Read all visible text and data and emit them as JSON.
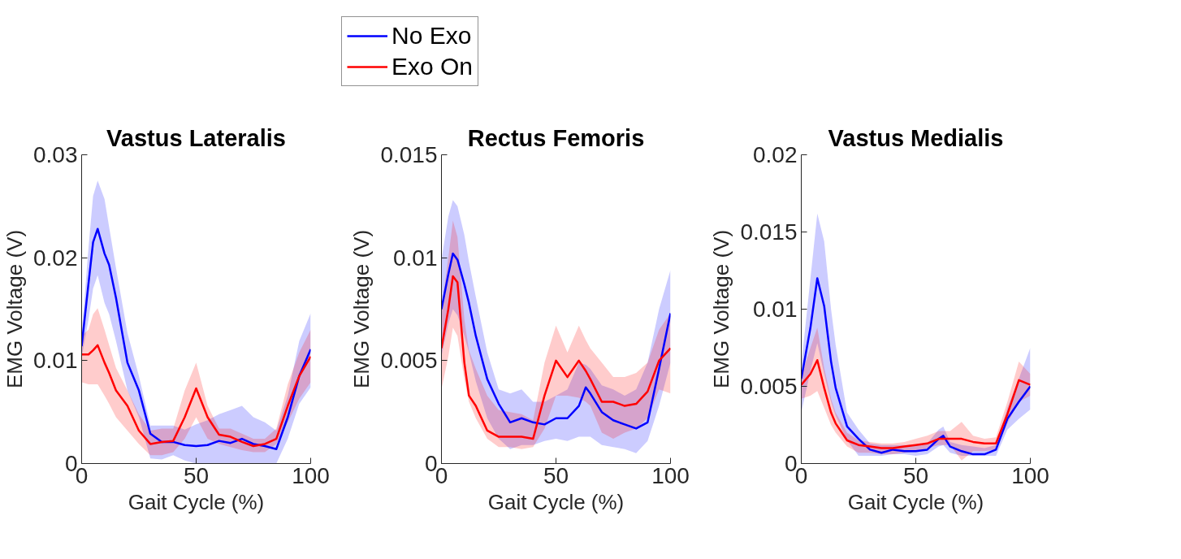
{
  "chart_data": [
    {
      "type": "line",
      "title": "Vastus Lateralis",
      "xlabel": "Gait Cycle (%)",
      "ylabel": "EMG Voltage (V)",
      "legend": "top",
      "x": [
        0,
        3,
        5,
        7,
        10,
        12,
        15,
        20,
        25,
        30,
        35,
        40,
        45,
        50,
        55,
        60,
        65,
        70,
        75,
        80,
        85,
        90,
        95,
        100
      ],
      "xlim": [
        0,
        100
      ],
      "xticks": [
        0,
        50,
        100
      ],
      "ylim": [
        0,
        0.03
      ],
      "yticks": [
        0,
        0.01,
        0.02,
        0.03
      ],
      "series": [
        {
          "name": "No Exo",
          "color": "#0000ff",
          "values": [
            0.0114,
            0.0175,
            0.0215,
            0.0228,
            0.0204,
            0.0193,
            0.0161,
            0.0098,
            0.0071,
            0.0029,
            0.0021,
            0.0021,
            0.0018,
            0.0017,
            0.0018,
            0.0022,
            0.002,
            0.0024,
            0.0019,
            0.0017,
            0.0014,
            0.0045,
            0.0085,
            0.0111
          ],
          "upper": [
            0.0124,
            0.021,
            0.026,
            0.0275,
            0.0257,
            0.023,
            0.019,
            0.0127,
            0.0085,
            0.0037,
            0.0037,
            0.0037,
            0.0033,
            0.0038,
            0.0042,
            0.0048,
            0.0052,
            0.0056,
            0.0045,
            0.004,
            0.0032,
            0.0066,
            0.0119,
            0.0146
          ],
          "lower": [
            0.0103,
            0.014,
            0.017,
            0.0183,
            0.0156,
            0.0145,
            0.0119,
            0.0071,
            0.0045,
            0.0005,
            0.0004,
            0.0008,
            0.0003,
            0,
            0,
            0,
            0,
            0,
            0,
            0,
            0,
            0.0024,
            0.0058,
            0.0074
          ]
        },
        {
          "name": "Exo On",
          "color": "#ff0000",
          "values": [
            0.0106,
            0.0106,
            0.011,
            0.0115,
            0.0098,
            0.0088,
            0.0071,
            0.0056,
            0.0032,
            0.0019,
            0.0021,
            0.0022,
            0.0045,
            0.0073,
            0.0045,
            0.0028,
            0.0026,
            0.0021,
            0.0017,
            0.0019,
            0.0024,
            0.0056,
            0.0085,
            0.0104
          ],
          "upper": [
            0.0124,
            0.013,
            0.0145,
            0.0151,
            0.013,
            0.0115,
            0.0093,
            0.0071,
            0.0048,
            0.0032,
            0.0034,
            0.0034,
            0.0071,
            0.0098,
            0.0056,
            0.0034,
            0.0034,
            0.0029,
            0.0024,
            0.0024,
            0.0034,
            0.0077,
            0.0108,
            0.013
          ],
          "lower": [
            0.0079,
            0.0077,
            0.0077,
            0.0077,
            0.0066,
            0.0058,
            0.0045,
            0.0032,
            0.0019,
            0.0008,
            0.0008,
            0.0011,
            0.0024,
            0.0045,
            0.0024,
            0.0019,
            0.0016,
            0.0013,
            0.0011,
            0.0011,
            0.0019,
            0.004,
            0.0063,
            0.0079
          ]
        }
      ]
    },
    {
      "type": "line",
      "title": "Rectus Femoris",
      "xlabel": "Gait Cycle (%)",
      "ylabel": "EMG Voltage (V)",
      "x": [
        0,
        3,
        5,
        7,
        10,
        12,
        15,
        20,
        25,
        30,
        35,
        40,
        45,
        50,
        55,
        60,
        63,
        65,
        70,
        75,
        80,
        85,
        90,
        95,
        100
      ],
      "xlim": [
        0,
        100
      ],
      "xticks": [
        0,
        50,
        100
      ],
      "ylim": [
        0,
        0.015
      ],
      "yticks": [
        0,
        0.005,
        0.01,
        0.015
      ],
      "series": [
        {
          "color": "#0000ff",
          "values": [
            0.0075,
            0.0092,
            0.0102,
            0.0099,
            0.0087,
            0.0078,
            0.0062,
            0.0041,
            0.0029,
            0.002,
            0.0022,
            0.002,
            0.0019,
            0.0022,
            0.0022,
            0.0028,
            0.0037,
            0.0034,
            0.0025,
            0.0021,
            0.0019,
            0.0017,
            0.002,
            0.0046,
            0.0073
          ],
          "upper": [
            0.0099,
            0.012,
            0.0128,
            0.0125,
            0.0111,
            0.0098,
            0.0081,
            0.0054,
            0.0036,
            0.0034,
            0.0036,
            0.003,
            0.003,
            0.0033,
            0.0036,
            0.0049,
            0.0048,
            0.0046,
            0.0038,
            0.0036,
            0.0033,
            0.0036,
            0.0049,
            0.0075,
            0.0094
          ],
          "lower": [
            0.0052,
            0.0068,
            0.0075,
            0.0072,
            0.0062,
            0.0054,
            0.004,
            0.0022,
            0.0012,
            0.0007,
            0.0009,
            0.0009,
            0.0011,
            0.0012,
            0.0011,
            0.0013,
            0.0013,
            0.0013,
            0.0009,
            0.0008,
            0.0007,
            0.0005,
            0.0011,
            0.0028,
            0.0049
          ]
        },
        {
          "color": "#ff0000",
          "values": [
            0.0056,
            0.0075,
            0.0091,
            0.0088,
            0.0049,
            0.0033,
            0.0028,
            0.0016,
            0.0013,
            0.0013,
            0.0013,
            0.0012,
            0.0033,
            0.005,
            0.0042,
            0.005,
            0.0045,
            0.0041,
            0.003,
            0.003,
            0.0028,
            0.0029,
            0.0035,
            0.005,
            0.0056
          ],
          "upper": [
            0.0075,
            0.01,
            0.0118,
            0.011,
            0.007,
            0.0055,
            0.0046,
            0.0033,
            0.0026,
            0.0025,
            0.0024,
            0.0021,
            0.0049,
            0.0067,
            0.0054,
            0.0067,
            0.006,
            0.0056,
            0.0049,
            0.0042,
            0.0042,
            0.0044,
            0.0049,
            0.0065,
            0.0073
          ],
          "lower": [
            0.0036,
            0.0052,
            0.0066,
            0.0062,
            0.0041,
            0.003,
            0.0022,
            0.0012,
            0.0008,
            0.0008,
            0.0007,
            0.0008,
            0.0017,
            0.0033,
            0.0033,
            0.0032,
            0.003,
            0.0028,
            0.0015,
            0.0012,
            0.0015,
            0.0017,
            0.0022,
            0.0036,
            0.0034
          ]
        }
      ]
    },
    {
      "type": "line",
      "title": "Vastus Medialis",
      "xlabel": "Gait Cycle (%)",
      "ylabel": "EMG Voltage (V)",
      "x": [
        0,
        4,
        7,
        10,
        13,
        15,
        20,
        25,
        30,
        35,
        40,
        45,
        50,
        55,
        60,
        62,
        65,
        70,
        75,
        80,
        85,
        90,
        95,
        100
      ],
      "xlim": [
        0,
        100
      ],
      "xticks": [
        0,
        50,
        100
      ],
      "ylim": [
        0,
        0.02
      ],
      "yticks": [
        0,
        0.005,
        0.01,
        0.015,
        0.02
      ],
      "series": [
        {
          "color": "#0000ff",
          "values": [
            0.0055,
            0.0088,
            0.012,
            0.0102,
            0.0066,
            0.0049,
            0.0024,
            0.0016,
            0.0009,
            0.0007,
            0.0009,
            0.0008,
            0.0008,
            0.0009,
            0.0016,
            0.0018,
            0.0011,
            0.0008,
            0.0006,
            0.0006,
            0.0009,
            0.0029,
            0.004,
            0.005
          ],
          "upper": [
            0.0064,
            0.012,
            0.0162,
            0.0144,
            0.01,
            0.0077,
            0.0033,
            0.0022,
            0.0013,
            0.0012,
            0.0012,
            0.0012,
            0.0012,
            0.0013,
            0.0022,
            0.0024,
            0.0014,
            0.0012,
            0.0011,
            0.001,
            0.0012,
            0.0036,
            0.0055,
            0.0075
          ],
          "lower": [
            0.0033,
            0.006,
            0.0078,
            0.0058,
            0.004,
            0.0031,
            0.0015,
            0.0005,
            0.0005,
            0.0005,
            0.0006,
            0.0006,
            0.0005,
            0.0006,
            0.0011,
            0.0012,
            0.0007,
            0.0005,
            0.0005,
            0.0005,
            0.0005,
            0.0022,
            0.0029,
            0.0035
          ]
        },
        {
          "color": "#ff0000",
          "values": [
            0.0051,
            0.0058,
            0.0067,
            0.0049,
            0.0033,
            0.0026,
            0.0015,
            0.0012,
            0.0011,
            0.001,
            0.001,
            0.0011,
            0.0012,
            0.0013,
            0.0016,
            0.0016,
            0.0016,
            0.0016,
            0.0014,
            0.0013,
            0.0013,
            0.0032,
            0.0054,
            0.0051
          ],
          "upper": [
            0.0057,
            0.0075,
            0.0088,
            0.0062,
            0.0042,
            0.0033,
            0.002,
            0.0015,
            0.0014,
            0.0013,
            0.0013,
            0.0014,
            0.0016,
            0.0018,
            0.0021,
            0.0021,
            0.0021,
            0.0027,
            0.0018,
            0.0016,
            0.0017,
            0.004,
            0.0066,
            0.0058
          ],
          "lower": [
            0.0042,
            0.0044,
            0.0047,
            0.0036,
            0.0025,
            0.002,
            0.0011,
            0.0007,
            0.0007,
            0.0006,
            0.0006,
            0.0007,
            0.0008,
            0.001,
            0.0012,
            0.0012,
            0.0012,
            0.0002,
            0.0008,
            0.0008,
            0.0009,
            0.0026,
            0.004,
            0.0044
          ]
        }
      ]
    }
  ]
}
